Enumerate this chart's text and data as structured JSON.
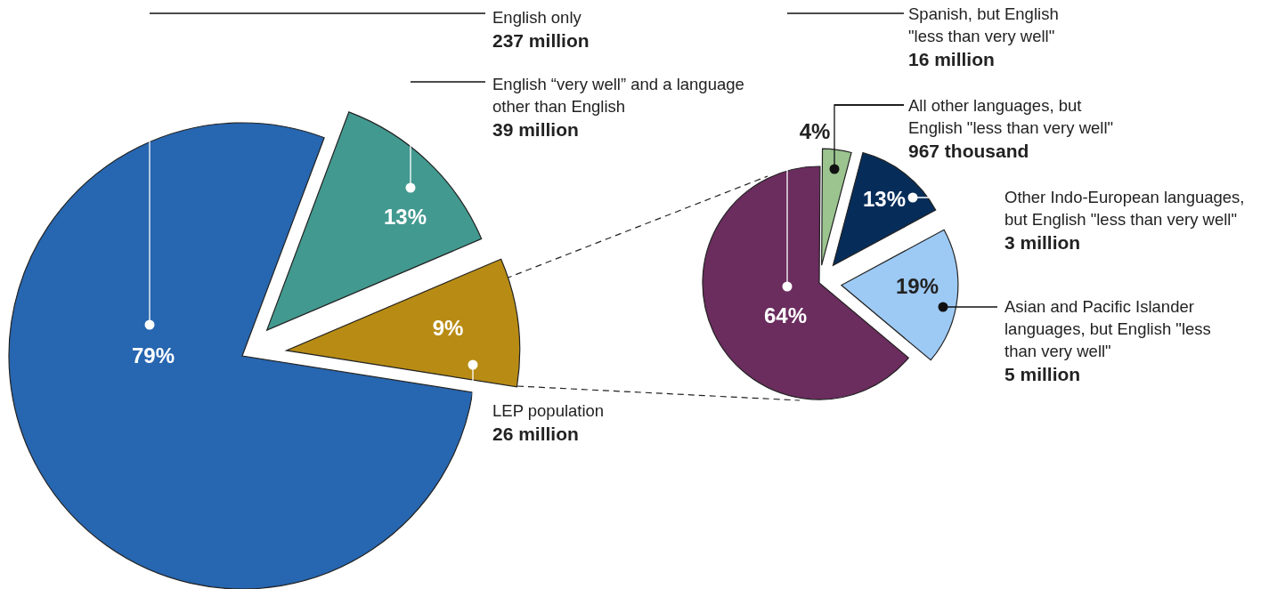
{
  "chart_data": [
    {
      "type": "pie",
      "categories": [
        "English only",
        "English “very well” and a language other than English",
        "LEP population"
      ],
      "values": [
        79,
        13,
        9
      ],
      "colors": [
        "#2766b0",
        "#429990",
        "#b88c14"
      ],
      "value_labels": [
        "79%",
        "13%",
        "9%"
      ],
      "annotations": [
        "237 million",
        "39 million",
        "26 million"
      ]
    },
    {
      "type": "pie",
      "categories": [
        "Spanish, but English \"less than very well\"",
        "All other languages, but English \"less than very well\"",
        "Other Indo-European languages, but English \"less than very well\"",
        "Asian and Pacific Islander languages, but English \"less than very well\""
      ],
      "values": [
        64,
        4,
        13,
        19
      ],
      "colors": [
        "#6b2c5e",
        "#9bc48f",
        "#062d5a",
        "#9dcaf5"
      ],
      "value_labels": [
        "64%",
        "4%",
        "13%",
        "19%"
      ],
      "annotations": [
        "16 million",
        "967 thousand",
        "3 million",
        "5 million"
      ]
    }
  ]
}
